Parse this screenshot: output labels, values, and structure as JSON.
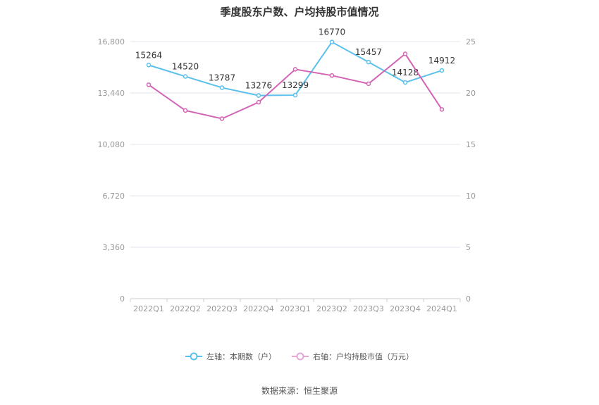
{
  "title": "季度股东户数、户均持股市值情况",
  "source": "数据来源：恒生聚源",
  "legend": {
    "left_label": "左轴：本期数（户）",
    "right_label": "右轴：户均持股市值（万元）"
  },
  "colors": {
    "left_series": "#5bc0eb",
    "right_series": "#d264b6",
    "grid": "#e6e6ee",
    "tick_text": "#999999"
  },
  "chart_data": {
    "type": "line",
    "title": "季度股东户数、户均持股市值情况",
    "categories": [
      "2022Q1",
      "2022Q2",
      "2022Q3",
      "2022Q4",
      "2023Q1",
      "2023Q2",
      "2023Q3",
      "2023Q4",
      "2024Q1"
    ],
    "y_left": {
      "ylim": [
        0,
        16800
      ],
      "ticks": [
        0,
        3360,
        6720,
        10080,
        13440,
        16800
      ],
      "tick_labels": [
        "0",
        "3,360",
        "6,720",
        "10,080",
        "13,440",
        "16,800"
      ]
    },
    "y_right": {
      "ylim": [
        0,
        25
      ],
      "ticks": [
        0,
        5,
        10,
        15,
        20,
        25
      ],
      "tick_labels": [
        "0",
        "5",
        "10",
        "15",
        "20",
        "25"
      ]
    },
    "series": [
      {
        "name": "左轴：本期数（户）",
        "axis": "left",
        "values": [
          15264,
          14520,
          13787,
          13276,
          13299,
          16770,
          15457,
          14128,
          14912
        ],
        "data_labels": [
          "15264",
          "14520",
          "13787",
          "13276",
          "13299",
          "16770",
          "15457",
          "14128",
          "14912"
        ]
      },
      {
        "name": "右轴：户均持股市值（万元）",
        "axis": "right",
        "values": [
          20.8,
          18.3,
          17.5,
          19.1,
          22.3,
          21.7,
          20.9,
          23.8,
          18.4
        ]
      }
    ],
    "grid": true,
    "legend_position": "bottom"
  }
}
